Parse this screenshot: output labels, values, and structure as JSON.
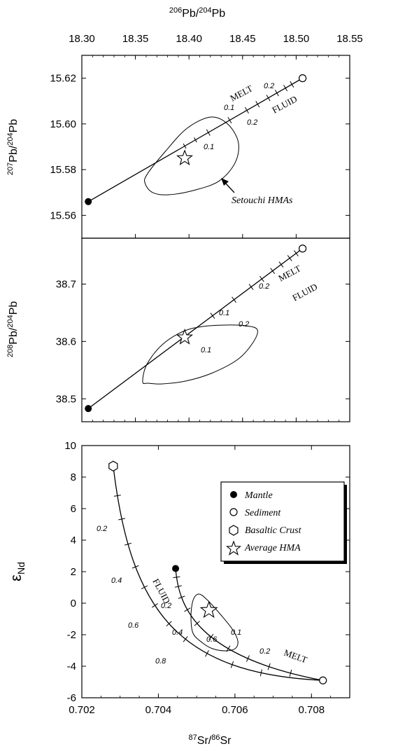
{
  "chart_data": [
    {
      "type": "line",
      "panel": "top",
      "x_axis_top_label_base": "Pb/",
      "x_axis_top_label_sup1": "206",
      "x_axis_top_label_sup2": "204",
      "x_axis_top_label_tail": "Pb",
      "xlim": [
        18.3,
        18.55
      ],
      "xticks": [
        "18.30",
        "18.35",
        "18.40",
        "18.45",
        "18.50",
        "18.55"
      ],
      "ylabel_sup1": "207",
      "ylabel_mid": "Pb/",
      "ylabel_sup2": "204",
      "ylabel_tail": "Pb",
      "ylim": [
        15.55,
        15.63
      ],
      "yticks": [
        "15.56",
        "15.58",
        "15.60",
        "15.62"
      ],
      "mantle": {
        "x": 18.306,
        "y": 15.566
      },
      "sediment": {
        "x": 18.506,
        "y": 15.62
      },
      "average_hma": {
        "x": 18.396,
        "y": 15.585
      },
      "envelope": [
        [
          18.361,
          15.578
        ],
        [
          18.378,
          15.588
        ],
        [
          18.398,
          15.598
        ],
        [
          18.42,
          15.603
        ],
        [
          18.436,
          15.6
        ],
        [
          18.446,
          15.592
        ],
        [
          18.443,
          15.583
        ],
        [
          18.428,
          15.575
        ],
        [
          18.405,
          15.571
        ],
        [
          18.381,
          15.569
        ],
        [
          18.366,
          15.57
        ],
        [
          18.359,
          15.574
        ]
      ],
      "labels": {
        "melt": "MELT",
        "fluid": "FLUID",
        "melt_0_1": "0.1",
        "melt_0_2": "0.2",
        "fluid_0_2": "0.2",
        "star_0_1": "0.1"
      },
      "annotation": "Setouchi HMAs"
    },
    {
      "type": "line",
      "panel": "middle",
      "ylabel_sup1": "208",
      "ylabel_mid": "Pb/",
      "ylabel_sup2": "204",
      "ylabel_tail": "Pb",
      "ylim": [
        38.46,
        38.78
      ],
      "yticks": [
        "38.5",
        "38.6",
        "38.7"
      ],
      "mantle": {
        "x": 18.306,
        "y": 38.483
      },
      "sediment": {
        "x": 18.506,
        "y": 38.762
      },
      "average_hma": {
        "x": 18.396,
        "y": 38.607
      },
      "labels": {
        "melt": "MELT",
        "fluid": "FLUID",
        "melt_0_1": "0.1",
        "melt_0_2": "0.2",
        "fluid_0_2": "0.2",
        "star_0_1": "0.1"
      }
    },
    {
      "type": "line",
      "panel": "bottom",
      "xlabel_sup1": "87",
      "xlabel_mid": "Sr/",
      "xlabel_sup2": "86",
      "xlabel_tail": "Sr",
      "xlim": [
        0.702,
        0.709
      ],
      "xticks": [
        "0.702",
        "0.704",
        "0.706",
        "0.708"
      ],
      "ylabel_main": "ε",
      "ylabel_sub": "Nd",
      "ylim": [
        -6,
        10
      ],
      "yticks": [
        "-6",
        "-4",
        "-2",
        "0",
        "2",
        "4",
        "6",
        "8",
        "10"
      ],
      "mantle": {
        "x": 0.70445,
        "y": 2.2
      },
      "sediment": {
        "x": 0.7083,
        "y": -4.9
      },
      "basaltic_crust": {
        "x": 0.70282,
        "y": 8.7
      },
      "average_hma": {
        "x": 0.70532,
        "y": -0.45
      },
      "labels": {
        "melt": "MELT",
        "fluid": "FLUID",
        "crust_0_2": "0.2",
        "crust_0_4": "0.4",
        "crust_0_6": "0.6",
        "crust_0_8": "0.8",
        "fluid_0_2": "0.2",
        "fluid_0_4": "0.4",
        "fluid_0_6": "0.6",
        "melt_0_1": "0.1",
        "melt_0_2": "0.2"
      },
      "legend": [
        {
          "symbol": "filled-circle",
          "label": "Mantle"
        },
        {
          "symbol": "open-circle",
          "label": "Sediment"
        },
        {
          "symbol": "hexagon",
          "label": "Basaltic Crust"
        },
        {
          "symbol": "star",
          "label": "Average HMA"
        }
      ],
      "legend_position": "top-right"
    }
  ]
}
